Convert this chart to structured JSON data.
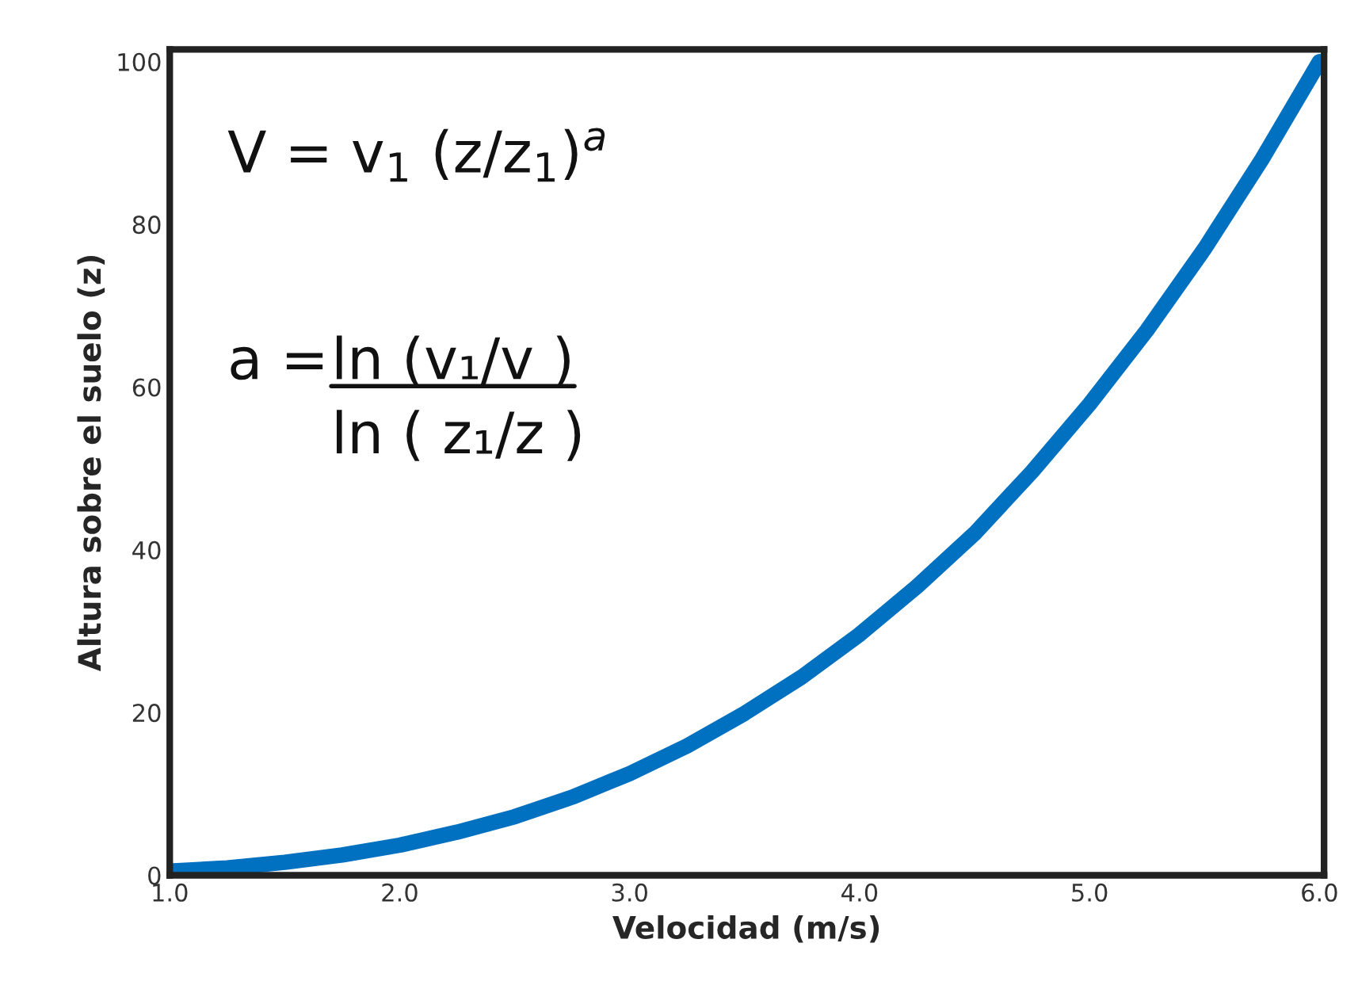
{
  "chart_data": {
    "type": "line",
    "xlabel": "Velocidad (m/s)",
    "ylabel": "Altura sobre el suelo (z)",
    "x": [
      1.0,
      1.25,
      1.5,
      1.75,
      2.0,
      2.25,
      2.5,
      2.75,
      3.0,
      3.25,
      3.5,
      3.75,
      4.0,
      4.25,
      4.5,
      4.75,
      5.0,
      5.25,
      5.5,
      5.75,
      6.0
    ],
    "series": [
      {
        "color": "#0070c0",
        "values": [
          0.5,
          0.9,
          1.6,
          2.5,
          3.7,
          5.3,
          7.2,
          9.6,
          12.5,
          15.9,
          19.9,
          24.4,
          29.6,
          35.5,
          42,
          49.6,
          57.9,
          67,
          77,
          88,
          100
        ]
      }
    ],
    "xlim": [
      1.0,
      6.02
    ],
    "ylim": [
      0,
      101.5
    ],
    "xticks": [
      {
        "value": 1,
        "label": "1.0"
      },
      {
        "value": 2,
        "label": "2.0"
      },
      {
        "value": 3,
        "label": "3.0"
      },
      {
        "value": 4,
        "label": "4.0"
      },
      {
        "value": 5,
        "label": "5.0"
      },
      {
        "value": 6,
        "label": "6.0"
      }
    ],
    "yticks": [
      0,
      20,
      40,
      60,
      80,
      100
    ],
    "grid": false,
    "legend": false,
    "marker": "none",
    "line_style": "solid",
    "annotations": [
      "V = v$_{1}$ (z/z$_{1}$)$^{a}$",
      "a =",
      "ln (v₁/v )",
      "ln ( z₁/z )"
    ]
  }
}
